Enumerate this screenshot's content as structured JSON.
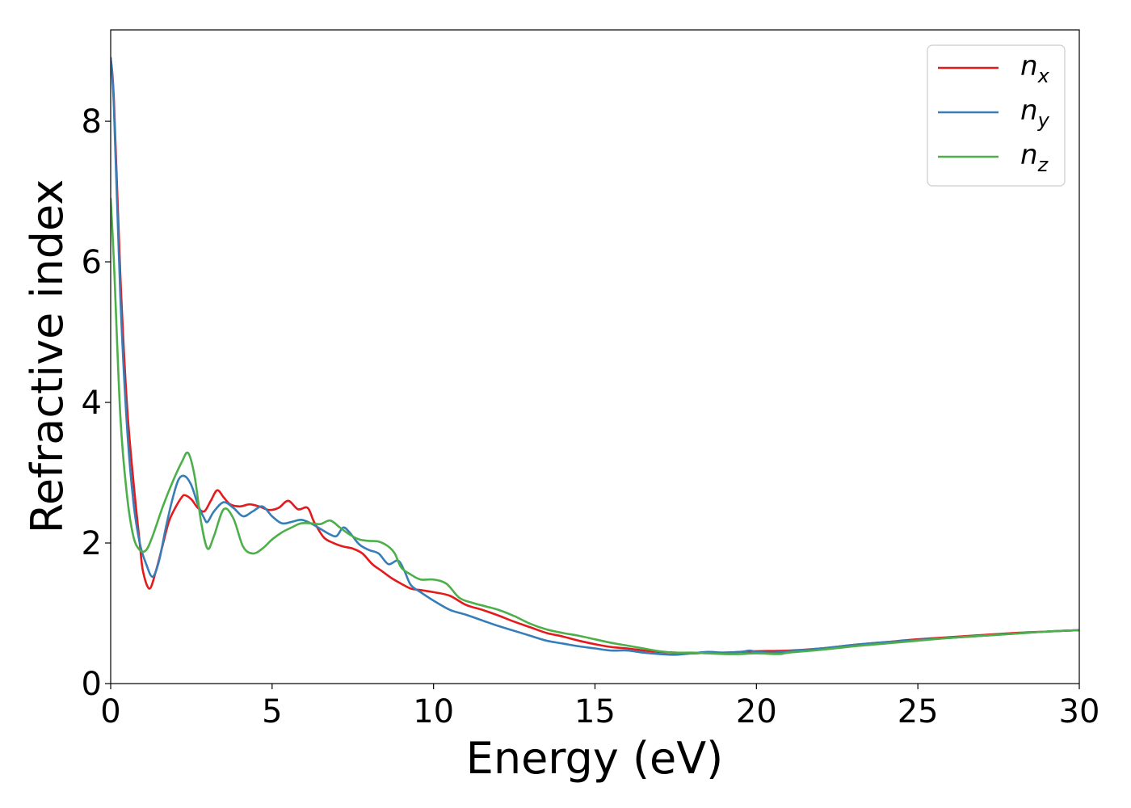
{
  "chart_data": {
    "type": "line",
    "xlabel": "Energy (eV)",
    "ylabel": "Refractive index",
    "xlim": [
      0,
      30
    ],
    "ylim": [
      0,
      9.3
    ],
    "xticks": [
      0,
      5,
      10,
      15,
      20,
      25,
      30
    ],
    "yticks": [
      0,
      2,
      4,
      6,
      8
    ],
    "grid": false,
    "legend_position": "top-right",
    "series": [
      {
        "name": "n_x",
        "label_main": "n",
        "label_sub": "x",
        "color": "#e41a1c",
        "points": [
          [
            0,
            8.9
          ],
          [
            0.1,
            8.3
          ],
          [
            0.3,
            5.8
          ],
          [
            0.5,
            4.0
          ],
          [
            0.7,
            2.9
          ],
          [
            0.9,
            2.0
          ],
          [
            1.0,
            1.6
          ],
          [
            1.2,
            1.35
          ],
          [
            1.4,
            1.6
          ],
          [
            1.6,
            1.95
          ],
          [
            1.8,
            2.3
          ],
          [
            2.0,
            2.5
          ],
          [
            2.2,
            2.65
          ],
          [
            2.3,
            2.68
          ],
          [
            2.5,
            2.62
          ],
          [
            2.7,
            2.5
          ],
          [
            2.9,
            2.45
          ],
          [
            3.1,
            2.6
          ],
          [
            3.3,
            2.75
          ],
          [
            3.5,
            2.65
          ],
          [
            3.7,
            2.55
          ],
          [
            4.0,
            2.52
          ],
          [
            4.3,
            2.55
          ],
          [
            4.6,
            2.52
          ],
          [
            4.9,
            2.47
          ],
          [
            5.2,
            2.5
          ],
          [
            5.5,
            2.6
          ],
          [
            5.8,
            2.48
          ],
          [
            6.1,
            2.5
          ],
          [
            6.3,
            2.3
          ],
          [
            6.6,
            2.08
          ],
          [
            6.9,
            2.0
          ],
          [
            7.2,
            1.95
          ],
          [
            7.5,
            1.92
          ],
          [
            7.8,
            1.85
          ],
          [
            8.1,
            1.7
          ],
          [
            8.4,
            1.6
          ],
          [
            8.7,
            1.5
          ],
          [
            9.0,
            1.42
          ],
          [
            9.3,
            1.35
          ],
          [
            9.6,
            1.33
          ],
          [
            10.0,
            1.3
          ],
          [
            10.5,
            1.25
          ],
          [
            11.0,
            1.12
          ],
          [
            11.5,
            1.05
          ],
          [
            12.0,
            0.97
          ],
          [
            12.5,
            0.88
          ],
          [
            13.0,
            0.8
          ],
          [
            13.5,
            0.72
          ],
          [
            14.0,
            0.67
          ],
          [
            14.5,
            0.61
          ],
          [
            15.0,
            0.56
          ],
          [
            15.5,
            0.52
          ],
          [
            16.0,
            0.5
          ],
          [
            16.5,
            0.47
          ],
          [
            17.0,
            0.45
          ],
          [
            17.5,
            0.44
          ],
          [
            18.0,
            0.43
          ],
          [
            18.5,
            0.44
          ],
          [
            19.0,
            0.44
          ],
          [
            19.5,
            0.45
          ],
          [
            20.0,
            0.46
          ],
          [
            21.0,
            0.47
          ],
          [
            22.0,
            0.5
          ],
          [
            23.0,
            0.55
          ],
          [
            24.0,
            0.59
          ],
          [
            25.0,
            0.63
          ],
          [
            26.0,
            0.66
          ],
          [
            27.0,
            0.69
          ],
          [
            28.0,
            0.72
          ],
          [
            29.0,
            0.74
          ],
          [
            30.0,
            0.76
          ]
        ]
      },
      {
        "name": "n_y",
        "label_main": "n",
        "label_sub": "y",
        "color": "#377eb8",
        "points": [
          [
            0,
            8.9
          ],
          [
            0.1,
            8.2
          ],
          [
            0.3,
            5.5
          ],
          [
            0.5,
            3.7
          ],
          [
            0.7,
            2.6
          ],
          [
            0.9,
            2.0
          ],
          [
            1.1,
            1.7
          ],
          [
            1.3,
            1.52
          ],
          [
            1.5,
            1.75
          ],
          [
            1.7,
            2.2
          ],
          [
            1.9,
            2.6
          ],
          [
            2.1,
            2.9
          ],
          [
            2.3,
            2.95
          ],
          [
            2.5,
            2.82
          ],
          [
            2.7,
            2.55
          ],
          [
            2.9,
            2.35
          ],
          [
            3.0,
            2.3
          ],
          [
            3.2,
            2.45
          ],
          [
            3.5,
            2.58
          ],
          [
            3.8,
            2.5
          ],
          [
            4.1,
            2.38
          ],
          [
            4.4,
            2.45
          ],
          [
            4.7,
            2.52
          ],
          [
            5.0,
            2.38
          ],
          [
            5.3,
            2.28
          ],
          [
            5.6,
            2.3
          ],
          [
            5.9,
            2.33
          ],
          [
            6.2,
            2.28
          ],
          [
            6.5,
            2.2
          ],
          [
            6.8,
            2.12
          ],
          [
            7.0,
            2.1
          ],
          [
            7.2,
            2.22
          ],
          [
            7.4,
            2.15
          ],
          [
            7.7,
            1.98
          ],
          [
            8.0,
            1.9
          ],
          [
            8.3,
            1.85
          ],
          [
            8.6,
            1.7
          ],
          [
            8.9,
            1.75
          ],
          [
            9.1,
            1.6
          ],
          [
            9.3,
            1.4
          ],
          [
            9.6,
            1.3
          ],
          [
            10.0,
            1.18
          ],
          [
            10.5,
            1.05
          ],
          [
            11.0,
            0.98
          ],
          [
            11.5,
            0.9
          ],
          [
            12.0,
            0.82
          ],
          [
            12.5,
            0.75
          ],
          [
            13.0,
            0.68
          ],
          [
            13.5,
            0.61
          ],
          [
            14.0,
            0.57
          ],
          [
            14.5,
            0.53
          ],
          [
            15.0,
            0.5
          ],
          [
            15.5,
            0.47
          ],
          [
            16.0,
            0.47
          ],
          [
            16.5,
            0.44
          ],
          [
            17.0,
            0.42
          ],
          [
            17.5,
            0.41
          ],
          [
            18.0,
            0.43
          ],
          [
            18.5,
            0.45
          ],
          [
            19.0,
            0.44
          ],
          [
            19.5,
            0.45
          ],
          [
            19.8,
            0.47
          ],
          [
            20.0,
            0.45
          ],
          [
            20.5,
            0.44
          ],
          [
            21.0,
            0.46
          ],
          [
            22.0,
            0.5
          ],
          [
            23.0,
            0.55
          ],
          [
            24.0,
            0.59
          ],
          [
            25.0,
            0.62
          ],
          [
            26.0,
            0.65
          ],
          [
            27.0,
            0.68
          ],
          [
            28.0,
            0.71
          ],
          [
            29.0,
            0.74
          ],
          [
            30.0,
            0.76
          ]
        ]
      },
      {
        "name": "n_z",
        "label_main": "n",
        "label_sub": "z",
        "color": "#4daf4a",
        "points": [
          [
            0,
            6.9
          ],
          [
            0.1,
            6.0
          ],
          [
            0.3,
            3.8
          ],
          [
            0.5,
            2.7
          ],
          [
            0.7,
            2.1
          ],
          [
            0.9,
            1.9
          ],
          [
            1.1,
            1.9
          ],
          [
            1.3,
            2.1
          ],
          [
            1.6,
            2.5
          ],
          [
            1.9,
            2.85
          ],
          [
            2.2,
            3.15
          ],
          [
            2.4,
            3.28
          ],
          [
            2.6,
            2.95
          ],
          [
            2.8,
            2.3
          ],
          [
            3.0,
            1.92
          ],
          [
            3.2,
            2.1
          ],
          [
            3.5,
            2.48
          ],
          [
            3.8,
            2.35
          ],
          [
            4.1,
            1.95
          ],
          [
            4.4,
            1.85
          ],
          [
            4.7,
            1.92
          ],
          [
            5.0,
            2.05
          ],
          [
            5.3,
            2.15
          ],
          [
            5.6,
            2.22
          ],
          [
            5.9,
            2.28
          ],
          [
            6.2,
            2.28
          ],
          [
            6.5,
            2.27
          ],
          [
            6.8,
            2.32
          ],
          [
            7.1,
            2.22
          ],
          [
            7.4,
            2.12
          ],
          [
            7.7,
            2.05
          ],
          [
            8.0,
            2.03
          ],
          [
            8.3,
            2.02
          ],
          [
            8.6,
            1.95
          ],
          [
            8.8,
            1.85
          ],
          [
            9.0,
            1.65
          ],
          [
            9.3,
            1.55
          ],
          [
            9.6,
            1.48
          ],
          [
            10.0,
            1.48
          ],
          [
            10.4,
            1.42
          ],
          [
            10.8,
            1.22
          ],
          [
            11.2,
            1.15
          ],
          [
            11.6,
            1.1
          ],
          [
            12.0,
            1.05
          ],
          [
            12.5,
            0.96
          ],
          [
            13.0,
            0.85
          ],
          [
            13.5,
            0.77
          ],
          [
            14.0,
            0.72
          ],
          [
            14.5,
            0.68
          ],
          [
            15.0,
            0.63
          ],
          [
            15.5,
            0.58
          ],
          [
            16.0,
            0.54
          ],
          [
            16.5,
            0.5
          ],
          [
            17.0,
            0.46
          ],
          [
            17.5,
            0.44
          ],
          [
            18.0,
            0.44
          ],
          [
            18.5,
            0.43
          ],
          [
            19.0,
            0.42
          ],
          [
            19.5,
            0.42
          ],
          [
            20.0,
            0.43
          ],
          [
            20.7,
            0.42
          ],
          [
            21.0,
            0.44
          ],
          [
            22.0,
            0.48
          ],
          [
            23.0,
            0.53
          ],
          [
            24.0,
            0.57
          ],
          [
            25.0,
            0.61
          ],
          [
            26.0,
            0.65
          ],
          [
            27.0,
            0.68
          ],
          [
            28.0,
            0.71
          ],
          [
            29.0,
            0.74
          ],
          [
            30.0,
            0.76
          ]
        ]
      }
    ]
  }
}
